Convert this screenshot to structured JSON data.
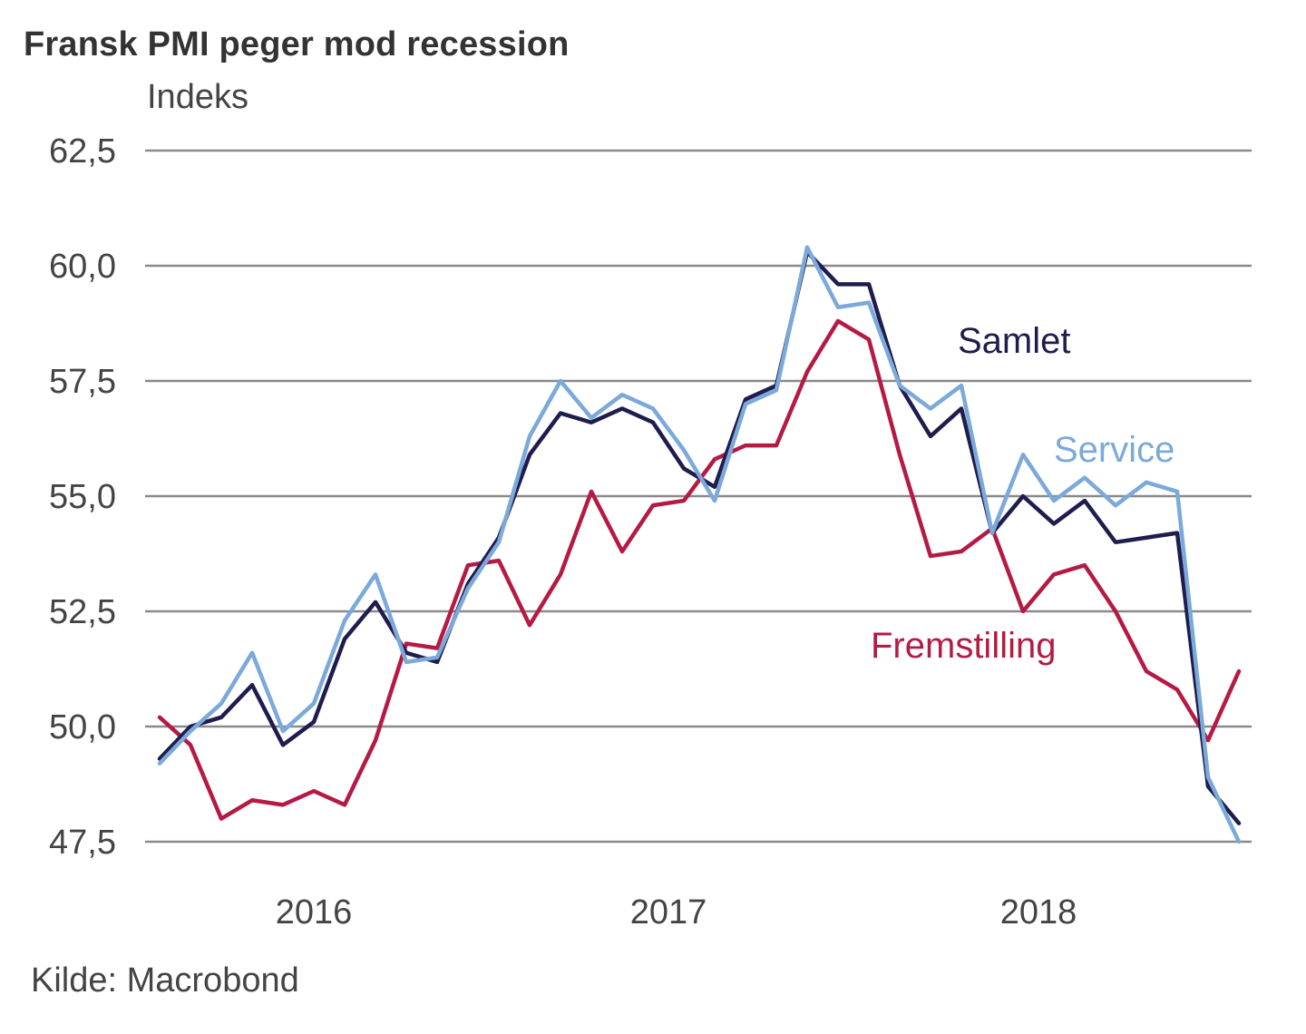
{
  "chart_data": {
    "type": "line",
    "title": "Fransk PMI peger mod recession",
    "ylabel": "Indeks",
    "xlabel": "",
    "source": "Kilde: Macrobond",
    "ylim": [
      47.5,
      62.5
    ],
    "yticks": [
      47.5,
      50.0,
      52.5,
      55.0,
      57.5,
      60.0,
      62.5
    ],
    "ytick_labels": [
      "47,5",
      "50,0",
      "52,5",
      "55,0",
      "57,5",
      "60,0",
      "62,5"
    ],
    "grid": true,
    "x_unit": "month",
    "x_start": "2016-01",
    "x_count": 36,
    "xtick_labels": [
      {
        "label": "2016",
        "index": 5
      },
      {
        "label": "2017",
        "index": 16.5
      },
      {
        "label": "2018",
        "index": 28.5
      }
    ],
    "legend": "inline-labels",
    "series": [
      {
        "name": "Samlet",
        "color": "#1f1c4e",
        "values": [
          49.3,
          50.0,
          50.2,
          50.9,
          49.6,
          50.1,
          51.9,
          52.7,
          51.6,
          51.4,
          53.1,
          54.1,
          55.9,
          56.8,
          56.6,
          56.9,
          56.6,
          55.6,
          55.2,
          57.1,
          57.4,
          60.3,
          59.6,
          59.6,
          57.4,
          56.3,
          56.9,
          54.2,
          55.0,
          54.4,
          54.9,
          54.0,
          54.1,
          54.2,
          48.7,
          47.9
        ]
      },
      {
        "name": "Service",
        "color": "#7ba9da",
        "values": [
          49.2,
          49.9,
          50.5,
          51.6,
          49.9,
          50.5,
          52.3,
          53.3,
          51.4,
          51.5,
          53.0,
          54.0,
          56.3,
          57.5,
          56.7,
          57.2,
          56.9,
          56.0,
          54.9,
          57.0,
          57.3,
          60.4,
          59.1,
          59.2,
          57.4,
          56.9,
          57.4,
          54.2,
          55.9,
          54.9,
          55.4,
          54.8,
          55.3,
          55.1,
          48.9,
          47.5
        ]
      },
      {
        "name": "Fremstilling",
        "color": "#b51a44",
        "values": [
          50.2,
          49.6,
          48.0,
          48.4,
          48.3,
          48.6,
          48.3,
          49.7,
          51.8,
          51.7,
          53.5,
          53.6,
          52.2,
          53.3,
          55.1,
          53.8,
          54.8,
          54.9,
          55.8,
          56.1,
          56.1,
          57.7,
          58.8,
          58.4,
          55.9,
          53.7,
          53.8,
          54.3,
          52.5,
          53.3,
          53.5,
          52.5,
          51.2,
          50.8,
          49.7,
          51.2
        ]
      }
    ]
  }
}
